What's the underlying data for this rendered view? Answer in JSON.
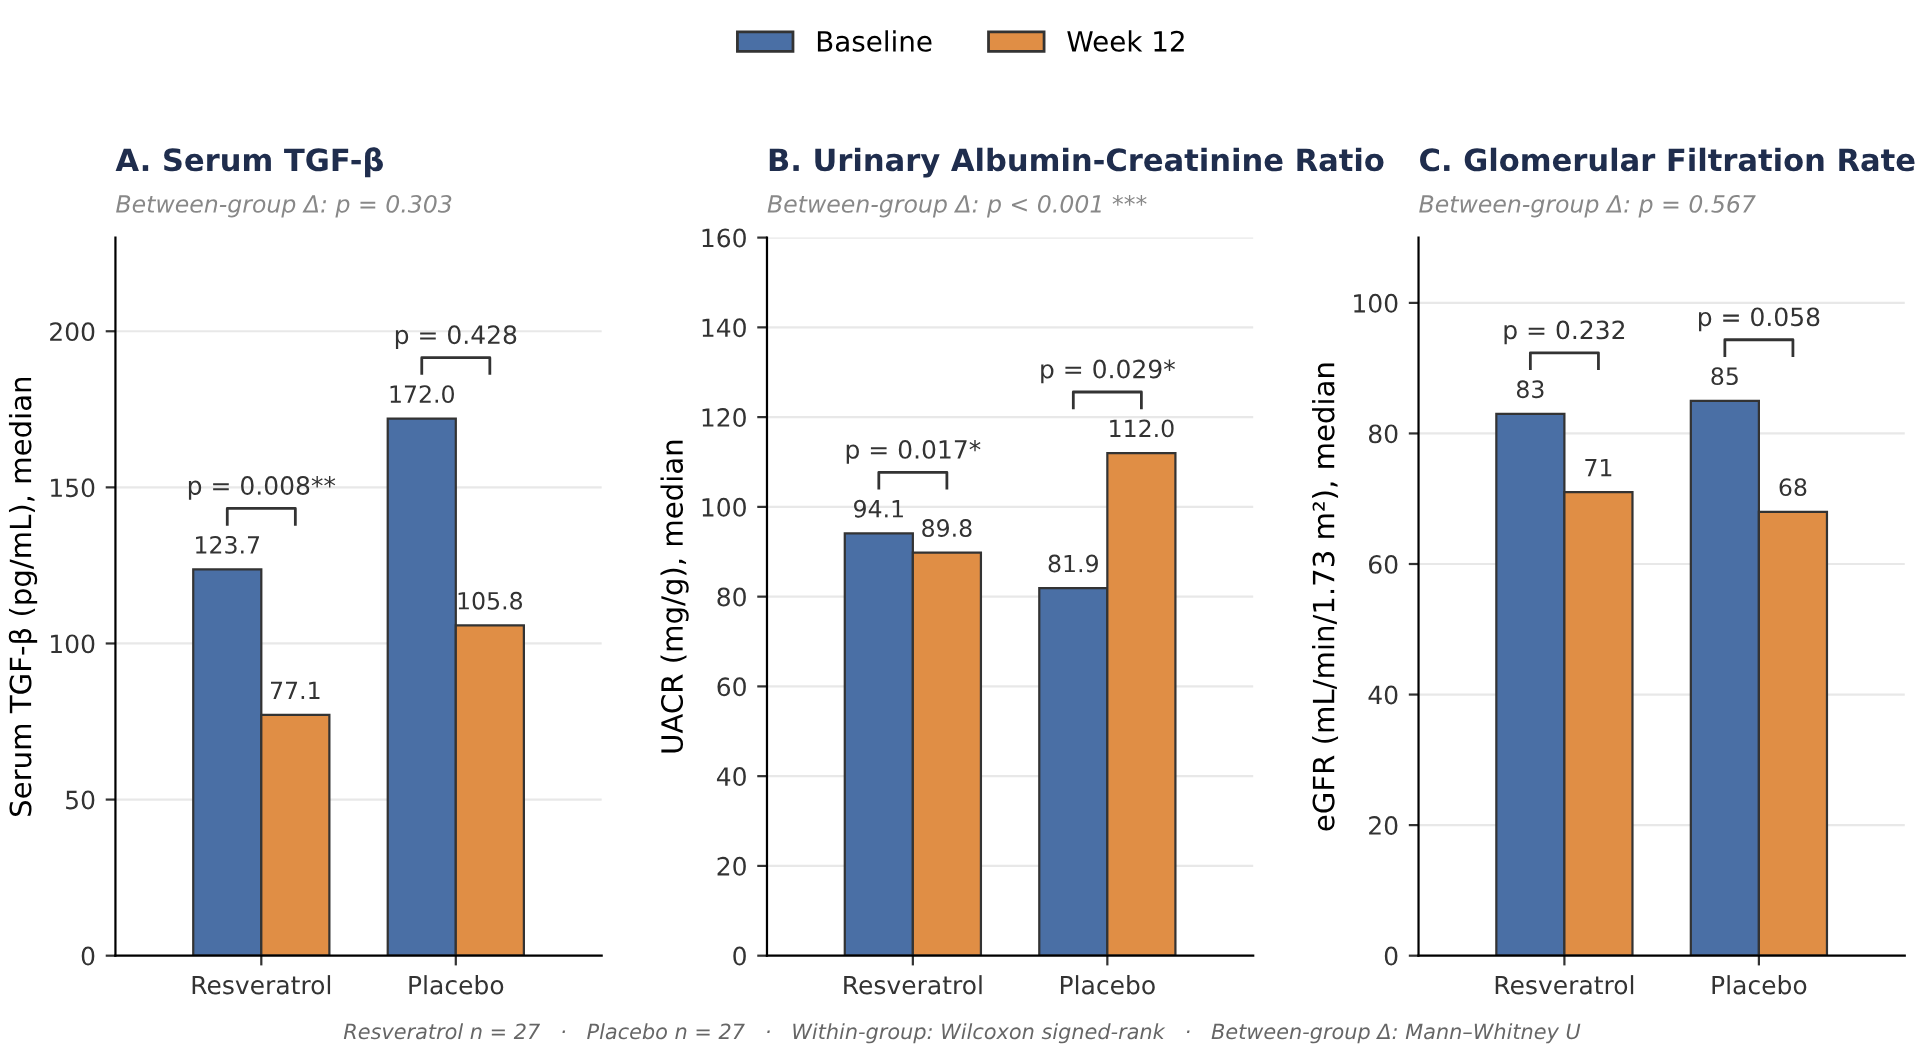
{
  "chart_data": [
    {
      "type": "bar",
      "title": "A. Serum TGF-β",
      "subtitle": "Between-group Δ: p = 0.303",
      "ylabel": "Serum TGF-β (pg/mL), median",
      "categories": [
        "Resveratrol",
        "Placebo"
      ],
      "series": [
        {
          "name": "Baseline",
          "color": "#4a6fa5",
          "values": [
            123.7,
            172.0
          ]
        },
        {
          "name": "Week 12",
          "color": "#e08e45",
          "values": [
            77.1,
            105.8
          ]
        }
      ],
      "value_labels": [
        [
          "123.7",
          "172.0"
        ],
        [
          "77.1",
          "105.8"
        ]
      ],
      "ylim": [
        0,
        230
      ],
      "yticks": [
        0,
        50,
        100,
        150,
        200
      ],
      "grid": "y",
      "legend": "top",
      "annotations": [
        "p = 0.008**",
        "p = 0.428",
        "Resveratrol n = 27   ·   Placebo n = 27   ·   Within-group: Wilcoxon signed-rank   ·   Between-group Δ: Mann–Whitney U"
      ]
    },
    {
      "type": "bar",
      "title": "B. Urinary Albumin-Creatinine Ratio",
      "subtitle": "Between-group Δ: p < 0.001 ***",
      "ylabel": "UACR (mg/g), median",
      "categories": [
        "Resveratrol",
        "Placebo"
      ],
      "series": [
        {
          "name": "Baseline",
          "color": "#4a6fa5",
          "values": [
            94.1,
            81.9
          ]
        },
        {
          "name": "Week 12",
          "color": "#e08e45",
          "values": [
            89.8,
            112.0
          ]
        }
      ],
      "value_labels": [
        [
          "94.1",
          "81.9"
        ],
        [
          "89.8",
          "112.0"
        ]
      ],
      "ylim": [
        0,
        160
      ],
      "yticks": [
        0,
        20,
        40,
        60,
        80,
        100,
        120,
        140,
        160
      ],
      "grid": "y",
      "legend": "top",
      "annotations": [
        "p = 0.017*",
        "p = 0.029*"
      ]
    },
    {
      "type": "bar",
      "title": "C. Glomerular Filtration Rate",
      "subtitle": "Between-group Δ: p = 0.567",
      "ylabel": "eGFR (mL/min/1.73 m²), median",
      "categories": [
        "Resveratrol",
        "Placebo"
      ],
      "series": [
        {
          "name": "Baseline",
          "color": "#4a6fa5",
          "values": [
            83,
            85
          ]
        },
        {
          "name": "Week 12",
          "color": "#e08e45",
          "values": [
            71,
            68
          ]
        }
      ],
      "value_labels": [
        [
          "83",
          "85"
        ],
        [
          "71",
          "68"
        ]
      ],
      "ylim": [
        0,
        110
      ],
      "yticks": [
        0,
        20,
        40,
        60,
        80,
        100
      ],
      "grid": "y",
      "legend": "top",
      "annotations": [
        "p = 0.232",
        "p = 0.058"
      ]
    }
  ]
}
